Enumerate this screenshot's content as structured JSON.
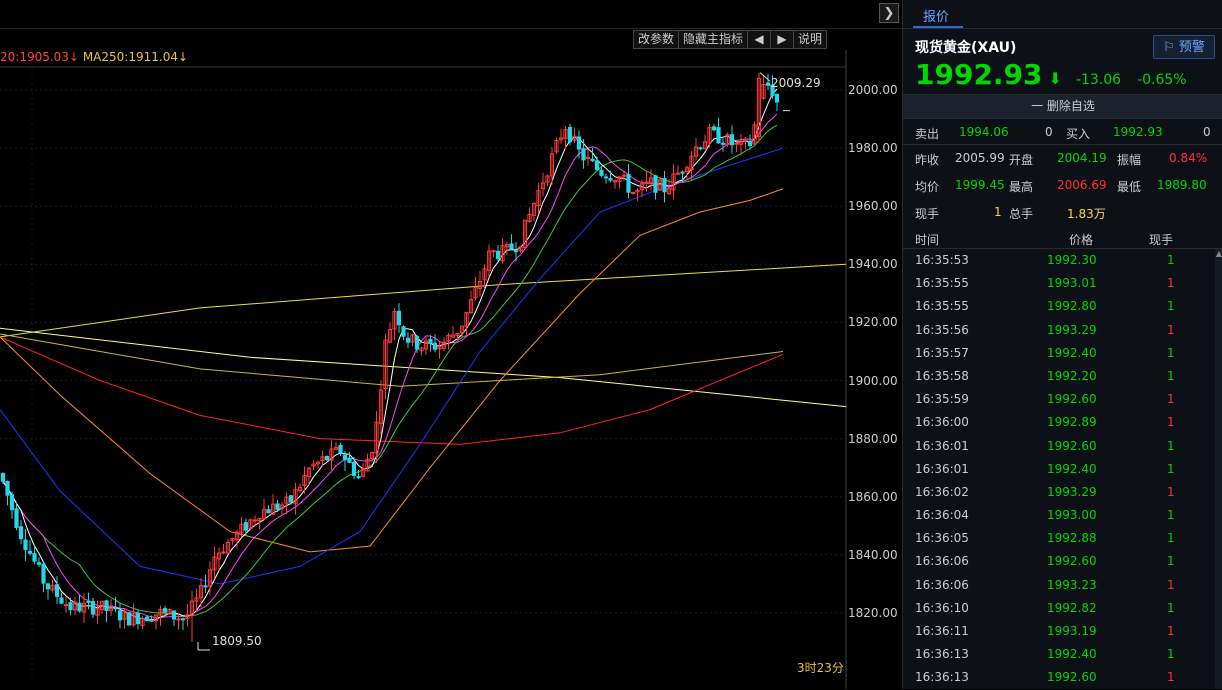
{
  "chart": {
    "ma_legend": {
      "ma20": "20:1905.03↓",
      "ma250": "MA250:1911.04↓"
    },
    "toolbar": {
      "params": "改参数",
      "hide_main": "隐藏主指标",
      "prev": "◀",
      "next": "▶",
      "help": "说明"
    },
    "collapse_icon": "❯",
    "high_label": "2009.29",
    "low_label": "1809.50",
    "time_remaining": "3时23分",
    "y_ticks": [
      "2000.00",
      "1980.00",
      "1960.00",
      "1940.00",
      "1920.00",
      "1900.00",
      "1880.00",
      "1860.00",
      "1840.00",
      "1820.00"
    ],
    "colors": {
      "up": "#ff3b3b",
      "down": "#22d8e6",
      "ma5": "#ffffff",
      "ma10": "#ff44ff",
      "ma20": "#33cc33",
      "ma60": "#2233ff",
      "ma120": "#ff8c1a",
      "ma250": "#ff2222",
      "long1": "#e8e04a",
      "long2": "#ffff80"
    }
  },
  "chart_data": {
    "type": "candlestick",
    "ylim": [
      1803,
      2011
    ],
    "high": 2009.29,
    "low": 1809.5
  },
  "panel": {
    "tab": "报价",
    "instrument": "现货黄金(XAU)",
    "alert": "⚐ 预警",
    "last_price": "1992.93",
    "arrow": "⬇",
    "change": "-13.06",
    "change_pct": "-0.65%",
    "remove_watch": "一 删除自选",
    "sell_label": "卖出",
    "sell_price": "1994.06",
    "sell_vol": "0",
    "buy_label": "买入",
    "buy_price": "1992.93",
    "buy_vol": "0",
    "prev_close_label": "昨收",
    "prev_close": "2005.99",
    "open_label": "开盘",
    "open": "2004.19",
    "amp_label": "振幅",
    "amp": "0.84%",
    "avg_label": "均价",
    "avg": "1999.45",
    "high_label": "最高",
    "high": "2006.69",
    "low_label": "最低",
    "low": "1989.80",
    "now_vol_label": "现手",
    "now_vol": "1",
    "total_vol_label": "总手",
    "total_vol": "1.83万",
    "ticks_header": {
      "time": "时间",
      "price": "价格",
      "vol": "现手"
    },
    "ticks": [
      {
        "time": "16:35:53",
        "price": "1992.30",
        "vol": "1",
        "dir": "g"
      },
      {
        "time": "16:35:55",
        "price": "1993.01",
        "vol": "1",
        "dir": "r"
      },
      {
        "time": "16:35:55",
        "price": "1992.80",
        "vol": "1",
        "dir": "g"
      },
      {
        "time": "16:35:56",
        "price": "1993.29",
        "vol": "1",
        "dir": "r"
      },
      {
        "time": "16:35:57",
        "price": "1992.40",
        "vol": "1",
        "dir": "g"
      },
      {
        "time": "16:35:58",
        "price": "1992.20",
        "vol": "1",
        "dir": "g"
      },
      {
        "time": "16:35:59",
        "price": "1992.60",
        "vol": "1",
        "dir": "r"
      },
      {
        "time": "16:36:00",
        "price": "1992.89",
        "vol": "1",
        "dir": "r"
      },
      {
        "time": "16:36:01",
        "price": "1992.60",
        "vol": "1",
        "dir": "g"
      },
      {
        "time": "16:36:01",
        "price": "1992.40",
        "vol": "1",
        "dir": "g"
      },
      {
        "time": "16:36:02",
        "price": "1993.29",
        "vol": "1",
        "dir": "r"
      },
      {
        "time": "16:36:04",
        "price": "1993.00",
        "vol": "1",
        "dir": "g"
      },
      {
        "time": "16:36:05",
        "price": "1992.88",
        "vol": "1",
        "dir": "g"
      },
      {
        "time": "16:36:06",
        "price": "1992.60",
        "vol": "1",
        "dir": "g"
      },
      {
        "time": "16:36:06",
        "price": "1993.23",
        "vol": "1",
        "dir": "r"
      },
      {
        "time": "16:36:10",
        "price": "1992.82",
        "vol": "1",
        "dir": "g"
      },
      {
        "time": "16:36:11",
        "price": "1993.19",
        "vol": "1",
        "dir": "r"
      },
      {
        "time": "16:36:13",
        "price": "1992.40",
        "vol": "1",
        "dir": "g"
      },
      {
        "time": "16:36:13",
        "price": "1992.60",
        "vol": "1",
        "dir": "r"
      }
    ]
  }
}
